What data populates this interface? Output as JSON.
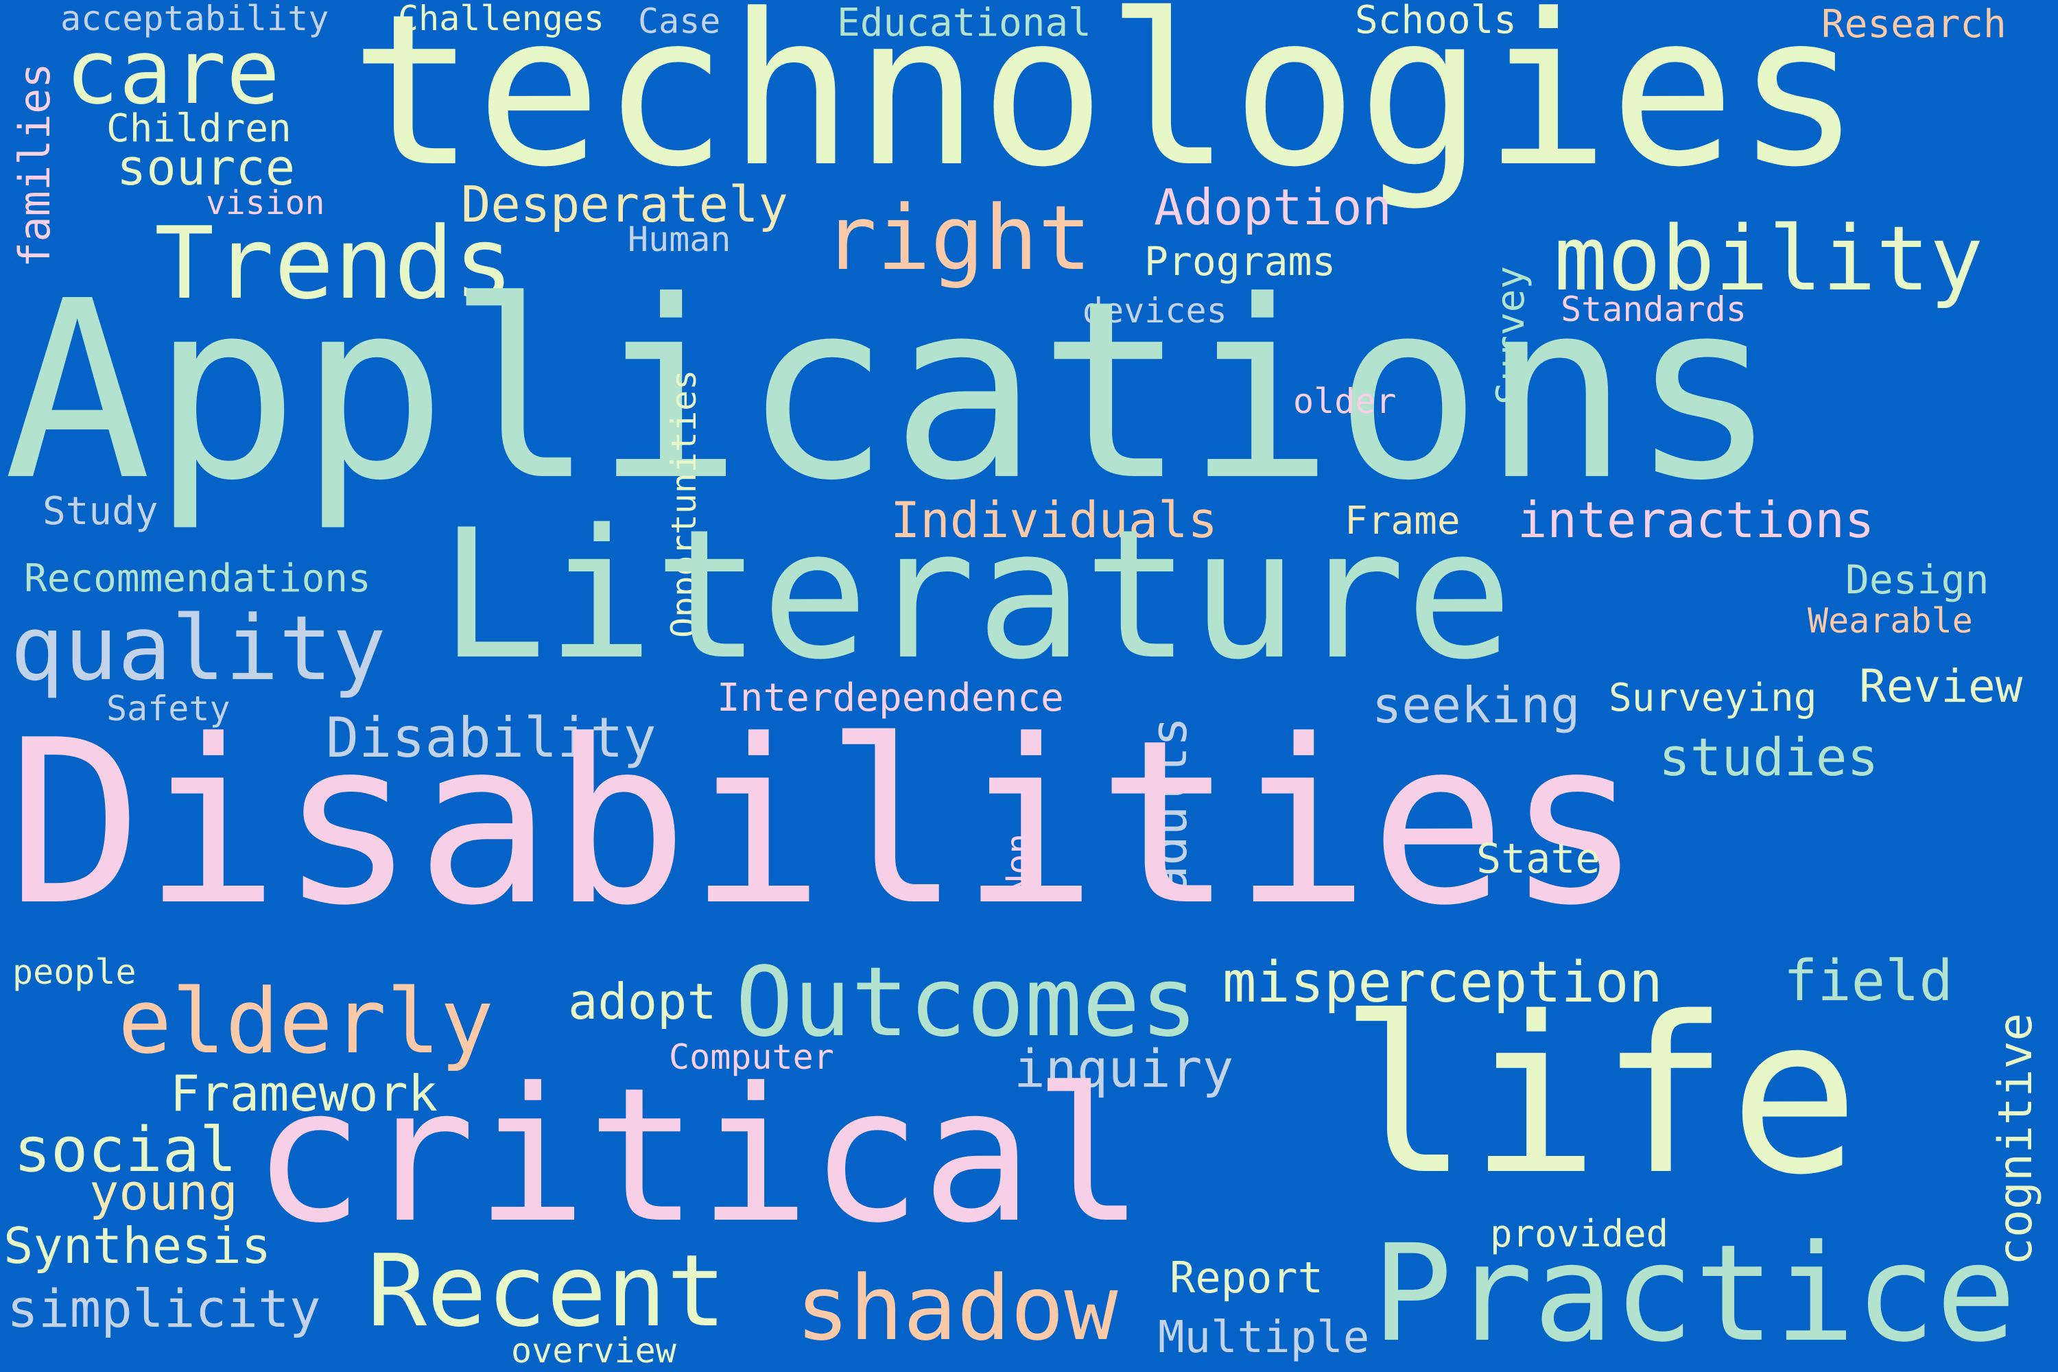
{
  "background_color": "#0563c8",
  "palette": [
    "#e8f7c8",
    "#b3e3cf",
    "#f7cfe6",
    "#f9c9a8",
    "#c2d2e8",
    "#f4e9b4"
  ],
  "words": [
    {
      "text": "acceptability",
      "color": "#c2d2e8"
    },
    {
      "text": "Challenges",
      "color": "#e8f7c8"
    },
    {
      "text": "Case",
      "color": "#c2d2e8"
    },
    {
      "text": "Educational",
      "color": "#b3e3cf"
    },
    {
      "text": "Schools",
      "color": "#e8f7c8"
    },
    {
      "text": "Research",
      "color": "#f9c9a8"
    },
    {
      "text": "families",
      "color": "#f7cfe6"
    },
    {
      "text": "care",
      "color": "#e8f7c8"
    },
    {
      "text": "technologies",
      "color": "#e8f7c8"
    },
    {
      "text": "Children",
      "color": "#e8f7c8"
    },
    {
      "text": "source",
      "color": "#e8f7c8"
    },
    {
      "text": "vision",
      "color": "#f7cfe6"
    },
    {
      "text": "Desperately",
      "color": "#f4e9b4"
    },
    {
      "text": "Human",
      "color": "#c2d2e8"
    },
    {
      "text": "right",
      "color": "#f9c9a8"
    },
    {
      "text": "Adoption",
      "color": "#f7cfe6"
    },
    {
      "text": "Trends",
      "color": "#e8f7c8"
    },
    {
      "text": "Programs",
      "color": "#e8f7c8"
    },
    {
      "text": "mobility",
      "color": "#e8f7c8"
    },
    {
      "text": "Survey",
      "color": "#b3e3cf"
    },
    {
      "text": "devices",
      "color": "#c2d2e8"
    },
    {
      "text": "Standards",
      "color": "#f7cfe6"
    },
    {
      "text": "Applications",
      "color": "#b3e3cf"
    },
    {
      "text": "Opportunities",
      "color": "#e8f7c8"
    },
    {
      "text": "older",
      "color": "#f7cfe6"
    },
    {
      "text": "Study",
      "color": "#c2d2e8"
    },
    {
      "text": "Individuals",
      "color": "#f9c9a8"
    },
    {
      "text": "Frame",
      "color": "#f4e9b4"
    },
    {
      "text": "interactions",
      "color": "#f7cfe6"
    },
    {
      "text": "Recommendations",
      "color": "#b3e3cf"
    },
    {
      "text": "Literature",
      "color": "#b3e3cf"
    },
    {
      "text": "Design",
      "color": "#b3e3cf"
    },
    {
      "text": "Wearable",
      "color": "#f9c9a8"
    },
    {
      "text": "quality",
      "color": "#c2d2e8"
    },
    {
      "text": "Review",
      "color": "#e8f7c8"
    },
    {
      "text": "Safety",
      "color": "#c2d2e8"
    },
    {
      "text": "Interdependence",
      "color": "#f7cfe6"
    },
    {
      "text": "seeking",
      "color": "#c2d2e8"
    },
    {
      "text": "Surveying",
      "color": "#e8f7c8"
    },
    {
      "text": "Disability",
      "color": "#c2d2e8"
    },
    {
      "text": "studies",
      "color": "#b3e3cf"
    },
    {
      "text": "adults",
      "color": "#c2d2e8"
    },
    {
      "text": "Disabilities",
      "color": "#f7cfe6"
    },
    {
      "text": "Non",
      "color": "#f7cfe6"
    },
    {
      "text": "State",
      "color": "#e8f7c8"
    },
    {
      "text": "people",
      "color": "#e8f7c8"
    },
    {
      "text": "cognitive",
      "color": "#e8f7c8"
    },
    {
      "text": "elderly",
      "color": "#f9c9a8"
    },
    {
      "text": "adopt",
      "color": "#e8f7c8"
    },
    {
      "text": "Outcomes",
      "color": "#b3e3cf"
    },
    {
      "text": "misperception",
      "color": "#e8f7c8"
    },
    {
      "text": "field",
      "color": "#b3e3cf"
    },
    {
      "text": "Computer",
      "color": "#f7cfe6"
    },
    {
      "text": "inquiry",
      "color": "#c2d2e8"
    },
    {
      "text": "life",
      "color": "#e8f7c8"
    },
    {
      "text": "Framework",
      "color": "#e8f7c8"
    },
    {
      "text": "critical",
      "color": "#f7cfe6"
    },
    {
      "text": "social",
      "color": "#e8f7c8"
    },
    {
      "text": "young",
      "color": "#f4e9b4"
    },
    {
      "text": "Synthesis",
      "color": "#e8f7c8"
    },
    {
      "text": "provided",
      "color": "#e8f7c8"
    },
    {
      "text": "Practice",
      "color": "#b3e3cf"
    },
    {
      "text": "Recent",
      "color": "#e8f7c8"
    },
    {
      "text": "shadow",
      "color": "#f9c9a8"
    },
    {
      "text": "Report",
      "color": "#e8f7c8"
    },
    {
      "text": "simplicity",
      "color": "#c2d2e8"
    },
    {
      "text": "Multiple",
      "color": "#c2d2e8"
    },
    {
      "text": "overview",
      "color": "#e8f7c8"
    }
  ]
}
